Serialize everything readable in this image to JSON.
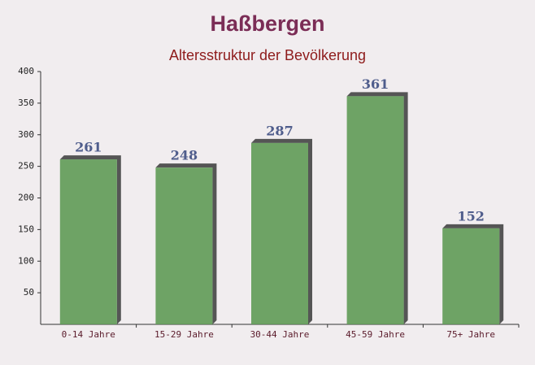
{
  "chart_data": {
    "type": "bar",
    "title": "Haßbergen",
    "subtitle": "Altersstruktur der Bevölkerung",
    "categories": [
      "0-14 Jahre",
      "15-29 Jahre",
      "30-44 Jahre",
      "45-59 Jahre",
      "75+ Jahre"
    ],
    "values": [
      261,
      248,
      287,
      361,
      152
    ],
    "color": "#5f9a55",
    "ylim": [
      0,
      400
    ],
    "yticks": [
      50,
      100,
      150,
      200,
      250,
      300,
      350,
      400
    ]
  }
}
